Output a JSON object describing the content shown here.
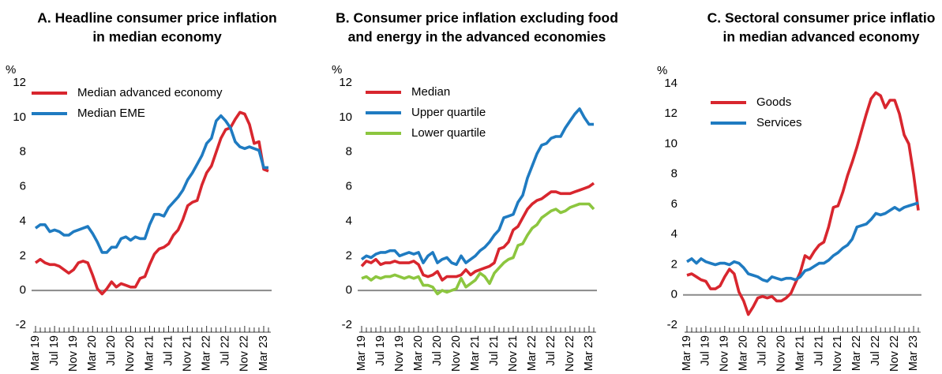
{
  "chart_data": [
    {
      "type": "line",
      "title": [
        "A. Headline consumer price inflation",
        "in median economy"
      ],
      "y_label": "%",
      "categories": [
        "Mar 19",
        null,
        null,
        null,
        "Jul 19",
        null,
        null,
        null,
        "Nov 19",
        null,
        null,
        null,
        "Mar 20",
        null,
        null,
        null,
        "Jul 20",
        null,
        null,
        null,
        "Nov 20",
        null,
        null,
        null,
        "Mar 21",
        null,
        null,
        null,
        "Jul 21",
        null,
        null,
        null,
        "Nov 21",
        null,
        null,
        null,
        "Mar 22",
        null,
        null,
        null,
        "Jul 22",
        null,
        null,
        null,
        "Nov 22",
        null,
        null,
        null,
        "Mar 23",
        null
      ],
      "ylim": [
        -2,
        12
      ],
      "yticks": [
        -2,
        0,
        2,
        4,
        6,
        8,
        10,
        12
      ],
      "grid": false,
      "legend": "upper left",
      "series": [
        {
          "name": "Median advanced economy",
          "color": "#d8262e",
          "values": [
            1.6,
            1.8,
            1.6,
            1.5,
            1.5,
            1.4,
            1.2,
            1.0,
            1.2,
            1.6,
            1.7,
            1.6,
            0.9,
            0.1,
            -0.2,
            0.1,
            0.5,
            0.2,
            0.4,
            0.3,
            0.2,
            0.2,
            0.7,
            0.8,
            1.5,
            2.1,
            2.4,
            2.5,
            2.7,
            3.2,
            3.5,
            4.1,
            4.9,
            5.1,
            5.2,
            6.1,
            6.8,
            7.2,
            8.0,
            8.8,
            9.3,
            9.4,
            9.9,
            10.3,
            10.2,
            9.6,
            8.5,
            8.6,
            7.0,
            6.9
          ]
        },
        {
          "name": "Median EME",
          "color": "#1f7bc1",
          "values": [
            3.6,
            3.8,
            3.8,
            3.4,
            3.5,
            3.4,
            3.2,
            3.2,
            3.4,
            3.5,
            3.6,
            3.7,
            3.3,
            2.8,
            2.2,
            2.2,
            2.5,
            2.5,
            3.0,
            3.1,
            2.9,
            3.1,
            3.0,
            3.0,
            3.8,
            4.4,
            4.4,
            4.3,
            4.8,
            5.1,
            5.4,
            5.8,
            6.4,
            6.8,
            7.3,
            7.8,
            8.5,
            8.8,
            9.8,
            10.1,
            9.8,
            9.4,
            8.6,
            8.3,
            8.2,
            8.3,
            8.2,
            8.1,
            7.1,
            7.1
          ]
        }
      ]
    },
    {
      "type": "line",
      "title": [
        "B. Consumer price inflation excluding food",
        "and energy in the advanced economies"
      ],
      "y_label": "%",
      "categories": [
        "Mar 19",
        null,
        null,
        null,
        "Jul 19",
        null,
        null,
        null,
        "Nov 19",
        null,
        null,
        null,
        "Mar 20",
        null,
        null,
        null,
        "Jul 20",
        null,
        null,
        null,
        "Nov 20",
        null,
        null,
        null,
        "Mar 21",
        null,
        null,
        null,
        "Jul 21",
        null,
        null,
        null,
        "Nov 21",
        null,
        null,
        null,
        "Mar 22",
        null,
        null,
        null,
        "Jul 22",
        null,
        null,
        null,
        "Nov 22",
        null,
        null,
        null,
        "Mar 23",
        null
      ],
      "ylim": [
        -2,
        12
      ],
      "yticks": [
        -2,
        0,
        2,
        4,
        6,
        8,
        10,
        12
      ],
      "grid": false,
      "legend": "upper left",
      "series": [
        {
          "name": "Median",
          "color": "#d8262e",
          "values": [
            1.4,
            1.7,
            1.6,
            1.8,
            1.5,
            1.6,
            1.6,
            1.7,
            1.6,
            1.6,
            1.6,
            1.7,
            1.5,
            0.9,
            0.8,
            0.9,
            1.1,
            0.6,
            0.8,
            0.8,
            0.8,
            0.9,
            1.2,
            0.9,
            1.1,
            1.2,
            1.3,
            1.4,
            1.6,
            2.4,
            2.5,
            2.8,
            3.5,
            3.7,
            4.2,
            4.7,
            5.0,
            5.2,
            5.3,
            5.5,
            5.7,
            5.7,
            5.6,
            5.6,
            5.6,
            5.7,
            5.8,
            5.9,
            6.0,
            6.2
          ]
        },
        {
          "name": "Upper quartile",
          "color": "#1f7bc1",
          "values": [
            1.8,
            2.0,
            1.9,
            2.1,
            2.2,
            2.2,
            2.3,
            2.3,
            2.0,
            2.1,
            2.2,
            2.1,
            2.2,
            1.6,
            2.0,
            2.2,
            1.6,
            1.8,
            1.9,
            1.6,
            1.5,
            2.0,
            1.6,
            1.8,
            2.0,
            2.3,
            2.5,
            2.8,
            3.2,
            3.5,
            4.2,
            4.3,
            4.4,
            5.1,
            5.5,
            6.5,
            7.2,
            7.9,
            8.4,
            8.5,
            8.8,
            8.9,
            8.9,
            9.4,
            9.8,
            10.2,
            10.5,
            10.0,
            9.6,
            9.6
          ]
        },
        {
          "name": "Lower quartile",
          "color": "#8cc63f",
          "values": [
            0.7,
            0.8,
            0.6,
            0.8,
            0.7,
            0.8,
            0.8,
            0.9,
            0.8,
            0.7,
            0.8,
            0.7,
            0.8,
            0.3,
            0.3,
            0.2,
            -0.2,
            0.0,
            -0.1,
            0.0,
            0.1,
            0.7,
            0.2,
            0.4,
            0.6,
            1.0,
            0.8,
            0.4,
            1.0,
            1.3,
            1.6,
            1.8,
            1.9,
            2.6,
            2.7,
            3.2,
            3.6,
            3.8,
            4.2,
            4.4,
            4.6,
            4.7,
            4.5,
            4.6,
            4.8,
            4.9,
            5.0,
            5.0,
            5.0,
            4.7
          ]
        }
      ]
    },
    {
      "type": "line",
      "title": [
        "C. Sectoral consumer price inflatio",
        "in median advanced economy"
      ],
      "y_label": "%",
      "categories": [
        "Mar 19",
        null,
        null,
        null,
        "Jul 19",
        null,
        null,
        null,
        "Nov 19",
        null,
        null,
        null,
        "Mar 20",
        null,
        null,
        null,
        "Jul 20",
        null,
        null,
        null,
        "Nov 20",
        null,
        null,
        null,
        "Mar 21",
        null,
        null,
        null,
        "Jul 21",
        null,
        null,
        null,
        "Nov 21",
        null,
        null,
        null,
        "Mar 22",
        null,
        null,
        null,
        "Jul 22",
        null,
        null,
        null,
        "Nov 22",
        null,
        null,
        null,
        "Mar 23",
        null
      ],
      "ylim": [
        -2,
        14
      ],
      "yticks": [
        -2,
        0,
        2,
        4,
        6,
        8,
        10,
        12,
        14
      ],
      "grid": false,
      "legend": "upper left",
      "series": [
        {
          "name": "Goods",
          "color": "#d8262e",
          "values": [
            1.3,
            1.4,
            1.2,
            1.0,
            0.9,
            0.4,
            0.4,
            0.6,
            1.2,
            1.7,
            1.4,
            0.2,
            -0.4,
            -1.3,
            -0.8,
            -0.2,
            -0.1,
            -0.2,
            -0.1,
            -0.4,
            -0.4,
            -0.2,
            0.1,
            0.8,
            1.5,
            2.6,
            2.4,
            2.9,
            3.3,
            3.5,
            4.5,
            5.8,
            5.9,
            6.8,
            7.9,
            8.8,
            9.8,
            10.9,
            12.0,
            13.0,
            13.4,
            13.2,
            12.4,
            12.9,
            12.9,
            12.0,
            10.6,
            10.0,
            8.0,
            5.6
          ]
        },
        {
          "name": "Services",
          "color": "#1f7bc1",
          "values": [
            2.2,
            2.4,
            2.1,
            2.4,
            2.2,
            2.1,
            2.0,
            2.1,
            2.1,
            2.0,
            2.2,
            2.1,
            1.8,
            1.4,
            1.3,
            1.2,
            1.0,
            0.9,
            1.2,
            1.1,
            1.0,
            1.1,
            1.1,
            1.0,
            1.2,
            1.6,
            1.7,
            1.9,
            2.1,
            2.1,
            2.3,
            2.6,
            2.8,
            3.1,
            3.3,
            3.7,
            4.5,
            4.6,
            4.7,
            5.0,
            5.4,
            5.3,
            5.4,
            5.6,
            5.8,
            5.6,
            5.8,
            5.9,
            6.0,
            6.1
          ]
        }
      ]
    }
  ]
}
